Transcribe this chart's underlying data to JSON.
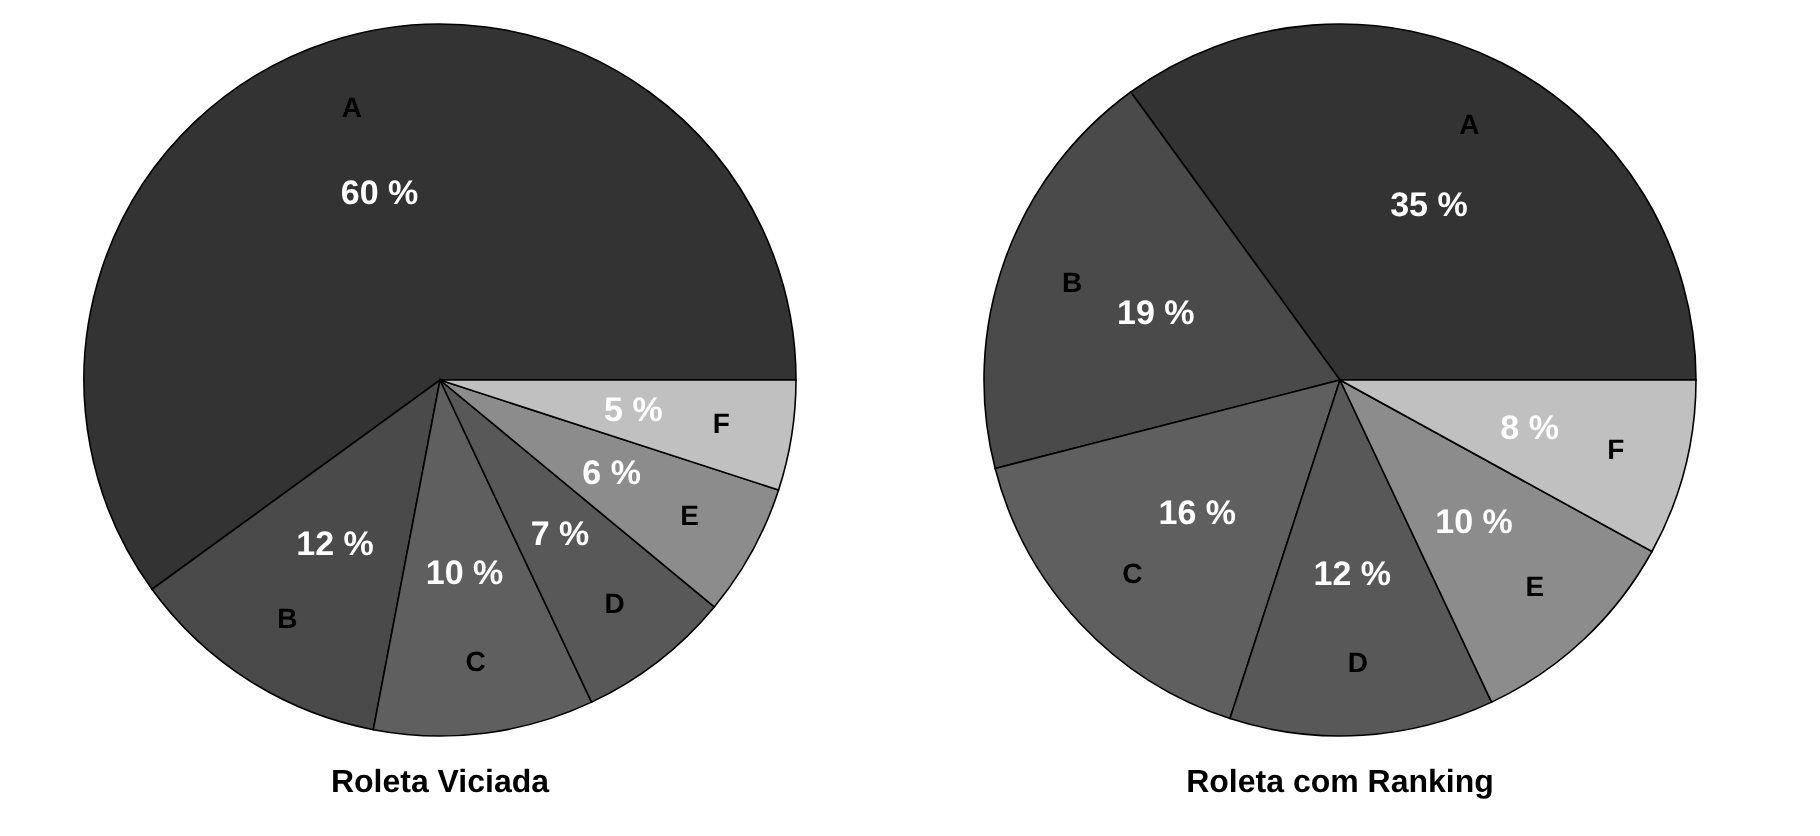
{
  "chart_data": [
    {
      "type": "pie",
      "title": "Roleta Viciada",
      "categories": [
        "A",
        "B",
        "C",
        "D",
        "E",
        "F"
      ],
      "values": [
        60,
        12,
        10,
        7,
        6,
        5
      ],
      "colors": [
        "#333333",
        "#4a4a4a",
        "#5f5f5f",
        "#585858",
        "#8c8c8c",
        "#c0c0c0"
      ],
      "value_labels": [
        "60 %",
        "12 %",
        "10 %",
        "7 %",
        "6 %",
        "5 %"
      ]
    },
    {
      "type": "pie",
      "title": "Roleta com Ranking",
      "categories": [
        "A",
        "B",
        "C",
        "D",
        "E",
        "F"
      ],
      "values": [
        35,
        19,
        16,
        12,
        10,
        8
      ],
      "colors": [
        "#333333",
        "#474747",
        "#5a5a5a",
        "#555555",
        "#8a8a8a",
        "#bfbfbf"
      ],
      "value_labels": [
        "35 %",
        "19 %",
        "16 %",
        "12 %",
        "10 %",
        "8 %"
      ]
    }
  ]
}
